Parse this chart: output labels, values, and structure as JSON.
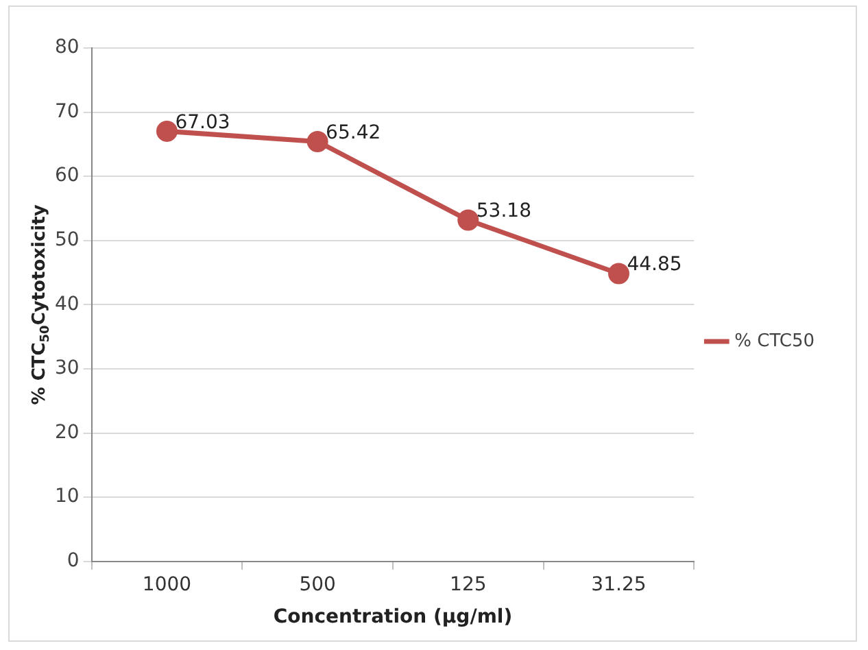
{
  "chart_data": {
    "type": "line",
    "xlabel": "Concentration (µg/ml)",
    "ylabel": "% CTC$_{50}$Cytotoxicity",
    "categories": [
      "1000",
      "500",
      "125",
      "31.25"
    ],
    "series": [
      {
        "name": "% CTC50",
        "color": "#c0504d",
        "values": [
          67.03,
          65.42,
          53.18,
          44.85
        ]
      }
    ],
    "ylim": [
      0,
      80
    ],
    "yticks": [
      0,
      10,
      20,
      30,
      40,
      50,
      60,
      70,
      80
    ],
    "grid": "y",
    "legend": "right",
    "marker": "circle",
    "data_labels": true
  }
}
